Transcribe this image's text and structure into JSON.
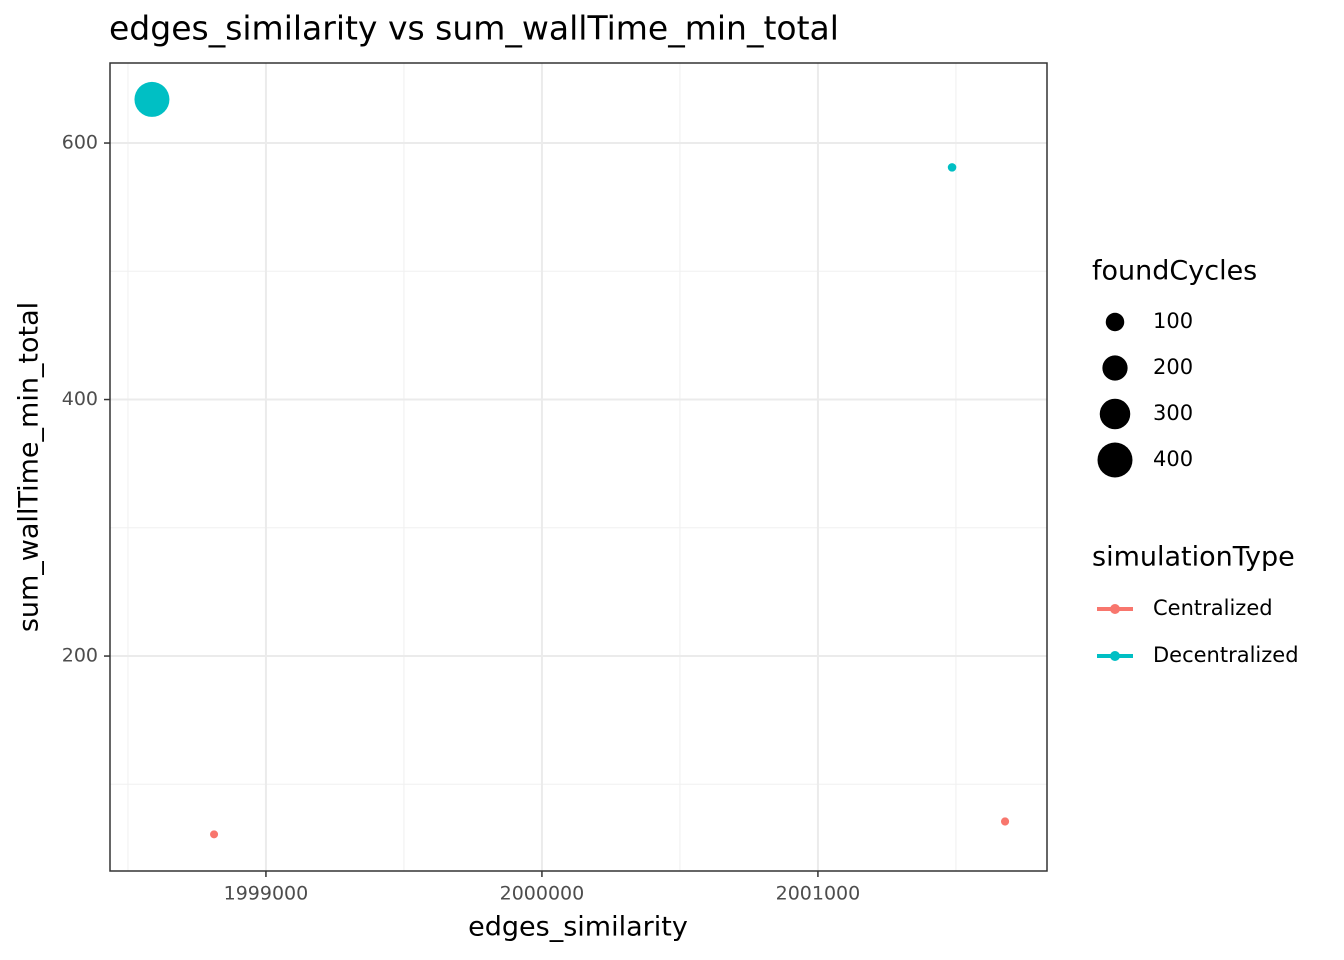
{
  "chart_data": {
    "type": "scatter",
    "title": "edges_similarity  vs  sum_wallTime_min_total",
    "x_label": "edges_similarity",
    "y_label": "sum_wallTime_min_total",
    "xlim": [
      1998435,
      2001830
    ],
    "ylim": [
      32.4,
      662.4
    ],
    "xticks": [
      1999000,
      2000000,
      2001000
    ],
    "yticks": [
      200,
      400,
      600
    ],
    "xminor": [
      1998500,
      1999500,
      2000500,
      2001500
    ],
    "yminor": [
      100,
      300,
      500
    ],
    "grid": true,
    "size_legend": {
      "title": "foundCycles",
      "values": [
        100,
        200,
        300,
        400
      ]
    },
    "color_legend": {
      "title": "simulationType"
    },
    "series": [
      {
        "name": "Centralized",
        "color": "#F8766D",
        "x": [
          1998812,
          2001678
        ],
        "values": [
          61,
          71
        ],
        "sizes": [
          5,
          6
        ]
      },
      {
        "name": "Decentralized",
        "color": "#00BFC4",
        "x": [
          1998587,
          2001486
        ],
        "values": [
          634,
          581
        ],
        "sizes": [
          400,
          8
        ]
      }
    ]
  }
}
